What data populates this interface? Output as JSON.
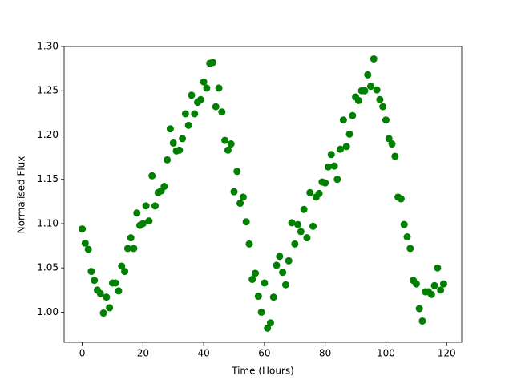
{
  "chart_data": {
    "type": "scatter",
    "xlabel": "Time (Hours)",
    "ylabel": "Normalised Flux",
    "series": [
      {
        "color": "#008000",
        "x": [
          0,
          1,
          2,
          3,
          4,
          5,
          6,
          7,
          8,
          9,
          10,
          11,
          12,
          13,
          14,
          15,
          16,
          17,
          18,
          19,
          20,
          21,
          22,
          23,
          24,
          25,
          26,
          27,
          28,
          29,
          30,
          31,
          32,
          33,
          34,
          35,
          36,
          37,
          38,
          39,
          40,
          41,
          42,
          43,
          44,
          45,
          46,
          47,
          48,
          49,
          50,
          51,
          52,
          53,
          54,
          55,
          56,
          57,
          58,
          59,
          60,
          61,
          62,
          63,
          64,
          65,
          66,
          67,
          68,
          69,
          70,
          71,
          72,
          73,
          74,
          75,
          76,
          77,
          78,
          79,
          80,
          81,
          82,
          83,
          84,
          85,
          86,
          87,
          88,
          89,
          90,
          91,
          92,
          93,
          94,
          95,
          96,
          97,
          98,
          99,
          100,
          101,
          102,
          103,
          104,
          105,
          106,
          107,
          108,
          109,
          110,
          111,
          112,
          113,
          114,
          115,
          116,
          117,
          118,
          119
        ],
        "values": [
          1.094,
          1.078,
          1.071,
          1.046,
          1.036,
          1.025,
          1.021,
          0.999,
          1.017,
          1.005,
          1.033,
          1.033,
          1.024,
          1.052,
          1.046,
          1.072,
          1.084,
          1.072,
          1.112,
          1.098,
          1.1,
          1.12,
          1.103,
          1.154,
          1.12,
          1.135,
          1.137,
          1.142,
          1.172,
          1.207,
          1.191,
          1.182,
          1.183,
          1.196,
          1.224,
          1.211,
          1.245,
          1.224,
          1.237,
          1.24,
          1.26,
          1.253,
          1.281,
          1.282,
          1.232,
          1.253,
          1.226,
          1.194,
          1.183,
          1.19,
          1.136,
          1.159,
          1.123,
          1.13,
          1.102,
          1.077,
          1.037,
          1.044,
          1.018,
          1.0,
          1.033,
          0.982,
          0.988,
          1.017,
          1.053,
          1.063,
          1.045,
          1.031,
          1.058,
          1.101,
          1.077,
          1.099,
          1.091,
          1.116,
          1.084,
          1.135,
          1.097,
          1.13,
          1.134,
          1.147,
          1.146,
          1.164,
          1.178,
          1.165,
          1.15,
          1.184,
          1.217,
          1.187,
          1.201,
          1.222,
          1.243,
          1.239,
          1.25,
          1.25,
          1.268,
          1.255,
          1.286,
          1.251,
          1.24,
          1.232,
          1.217,
          1.196,
          1.19,
          1.176,
          1.13,
          1.128,
          1.099,
          1.085,
          1.072,
          1.036,
          1.032,
          1.004,
          0.99,
          1.023,
          1.023,
          1.02,
          1.03,
          1.05,
          1.025,
          1.032
        ]
      }
    ],
    "xlim": [
      -5.95,
      124.95
    ],
    "xticks": [
      0,
      20,
      40,
      60,
      80,
      100,
      120
    ],
    "ylim": [
      0.966,
      1.3
    ],
    "yticks": [
      {
        "value": 1.0,
        "label": "1.00"
      },
      1.05,
      {
        "value": 1.1,
        "label": "1.10"
      },
      1.15,
      {
        "value": 1.2,
        "label": "1.20"
      },
      1.25,
      {
        "value": 1.3,
        "label": "1.30"
      }
    ]
  }
}
